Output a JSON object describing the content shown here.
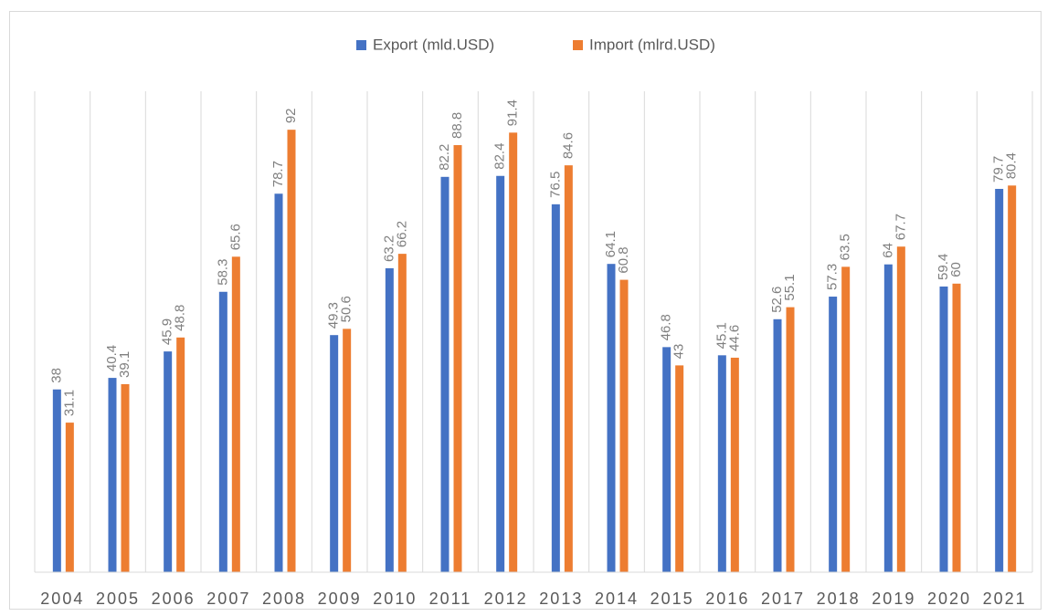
{
  "chart_data": {
    "type": "bar",
    "categories": [
      "2004",
      "2005",
      "2006",
      "2007",
      "2008",
      "2009",
      "2010",
      "2011",
      "2012",
      "2013",
      "2014",
      "2015",
      "2016",
      "2017",
      "2018",
      "2019",
      "2020",
      "2021"
    ],
    "series": [
      {
        "name": "Export (mld.USD)",
        "color": "#4472c4",
        "values": [
          38,
          40.4,
          45.9,
          58.3,
          78.7,
          49.3,
          63.2,
          82.2,
          82.4,
          76.5,
          64.1,
          46.8,
          45.1,
          52.6,
          57.3,
          64,
          59.4,
          79.7
        ]
      },
      {
        "name": "Import (mlrd.USD)",
        "color": "#ed7d31",
        "values": [
          31.1,
          39.1,
          48.8,
          65.6,
          92,
          50.6,
          66.2,
          88.8,
          91.4,
          84.6,
          60.8,
          43,
          44.6,
          55.1,
          63.5,
          67.7,
          60,
          80.4
        ]
      }
    ],
    "ylim": [
      0,
      100
    ],
    "grid": true,
    "legend": "top"
  }
}
